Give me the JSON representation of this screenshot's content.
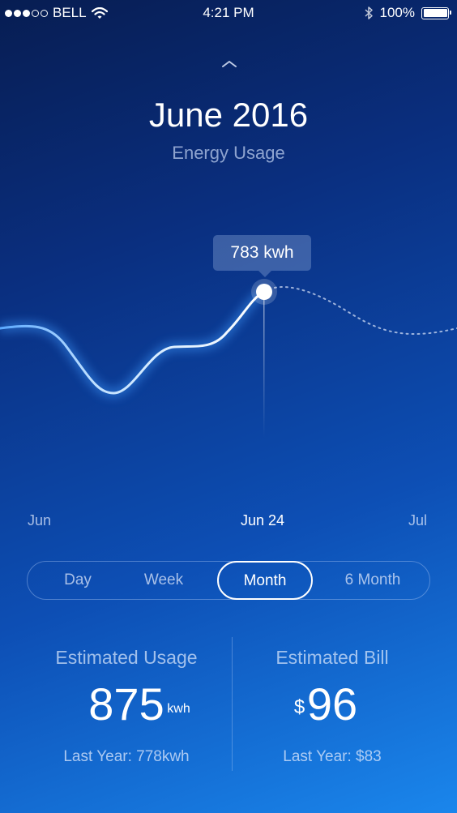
{
  "status_bar": {
    "carrier": "BELL",
    "time": "4:21 PM",
    "battery": "100%",
    "signal_strength": 3,
    "signal_max": 5
  },
  "header": {
    "title": "June 2016",
    "subtitle": "Energy Usage"
  },
  "chart_data": {
    "type": "line",
    "title": "",
    "x_labels": [
      "Jun",
      "Jun 24",
      "Jul"
    ],
    "selected_label": "Jun 24",
    "tooltip": "783 kwh",
    "selected_value": 783
  },
  "range_selector": {
    "options": [
      "Day",
      "Week",
      "Month",
      "6 Month"
    ],
    "selected": "Month"
  },
  "stats": {
    "usage": {
      "label": "Estimated Usage",
      "value": "875",
      "unit": "kwh",
      "last_year": "Last Year: 778kwh"
    },
    "bill": {
      "label": "Estimated Bill",
      "currency": "$",
      "value": "96",
      "last_year": "Last Year: $83"
    }
  },
  "colors": {
    "background_top": "#071d52",
    "background_bottom": "#1a86ec",
    "line_glow": "#3f9bff"
  }
}
